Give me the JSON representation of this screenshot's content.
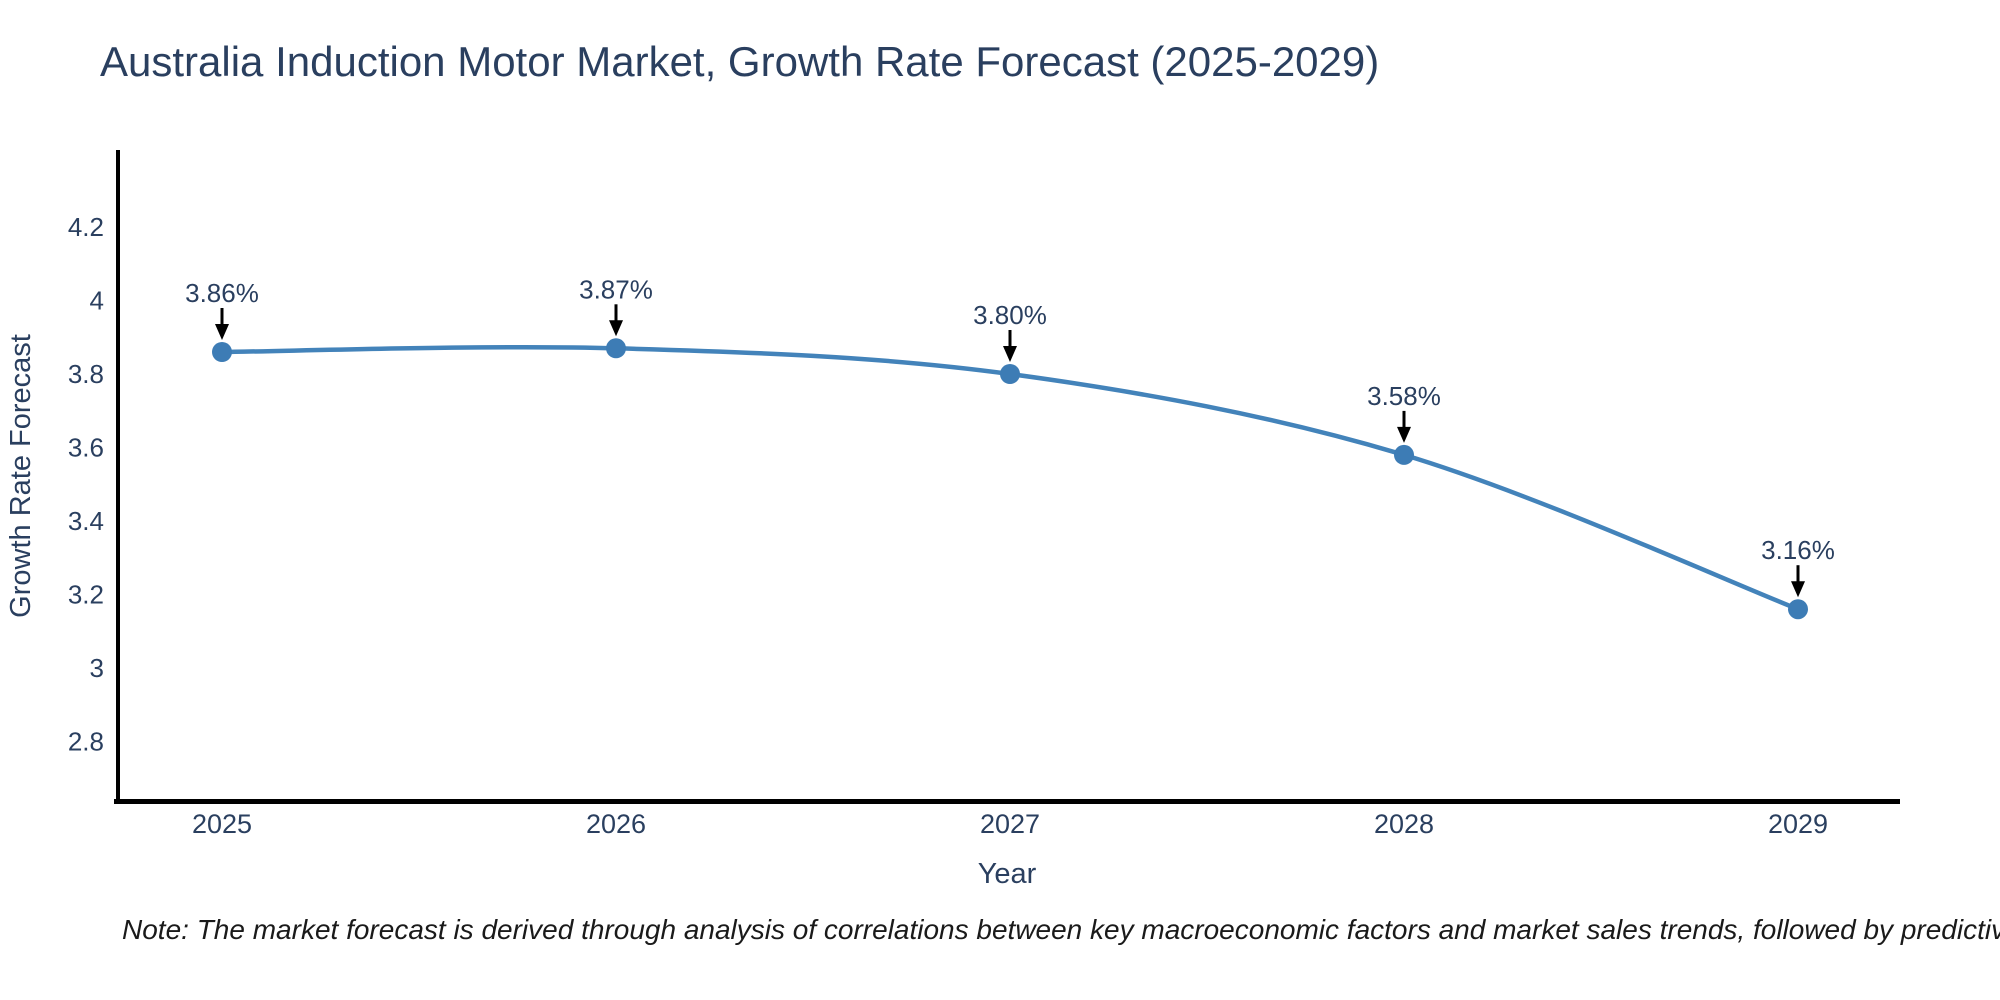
{
  "figure": {
    "title": "Australia Induction Motor Market, Growth Rate Forecast (2025-2029)",
    "note": "Note: The market forecast is derived through analysis of correlations between key macroeconomic factors and market sales trends, followed by predictive modeling to project future sales"
  },
  "chart_data": {
    "type": "line",
    "title": "Australia Induction Motor Market, Growth Rate Forecast (2025-2029)",
    "categories": [
      "2025",
      "2026",
      "2027",
      "2028",
      "2029"
    ],
    "series": [
      {
        "name": "Growth Rate Forecast",
        "values": [
          3.86,
          3.87,
          3.8,
          3.58,
          3.16
        ]
      }
    ],
    "point_labels": [
      "3.86%",
      "3.87%",
      "3.80%",
      "3.58%",
      "3.16%"
    ],
    "xlabel": "Year",
    "ylabel": "Growth Rate Forecast",
    "y_ticks": [
      4.2,
      4,
      3.8,
      3.6,
      3.4,
      3.2,
      3,
      2.8
    ],
    "y_tick_labels": [
      "4.2",
      "4",
      "3.8",
      "3.6",
      "3.4",
      "3.2",
      "3",
      "2.8"
    ],
    "ylim": [
      2.65,
      4.41
    ],
    "grid": false,
    "legend_position": "none",
    "line_shape": "spline",
    "marker": "circle",
    "annotation_arrows": true,
    "colors": {
      "line": "#4383ba",
      "marker": "#3d7cb5",
      "axis": "#000000",
      "text": "#2a3f5f",
      "arrow": "#000000",
      "note_text": "#1a1a1a",
      "background": "#ffffff"
    }
  }
}
